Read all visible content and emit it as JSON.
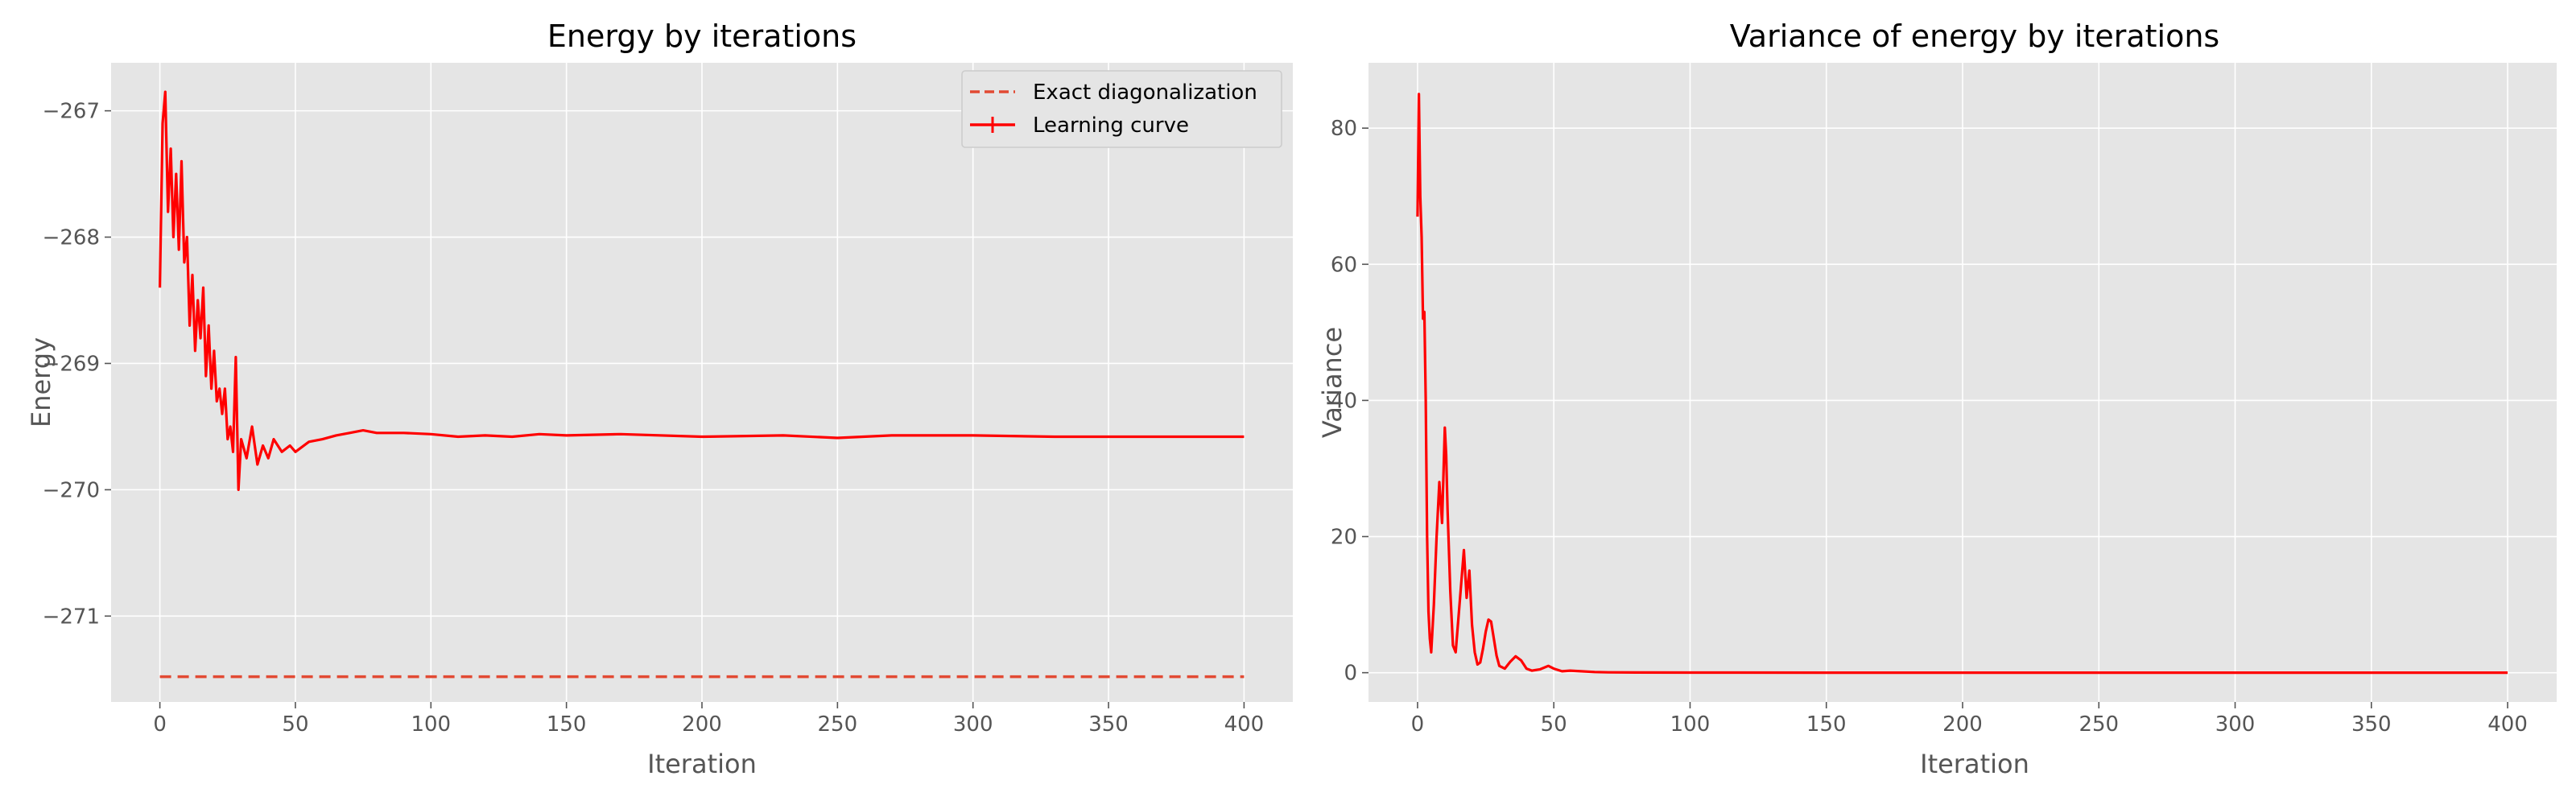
{
  "chart_data": [
    {
      "type": "line",
      "title": "Energy by iterations",
      "xlabel": "Iteration",
      "ylabel": "Energy",
      "xlim": [
        -18,
        418
      ],
      "ylim": [
        -271.68,
        -266.62
      ],
      "xticks": [
        0,
        50,
        100,
        150,
        200,
        250,
        300,
        350,
        400
      ],
      "yticks": [
        -267,
        -268,
        -269,
        -270,
        -271
      ],
      "xtick_labels": [
        "0",
        "50",
        "100",
        "150",
        "200",
        "250",
        "300",
        "350",
        "400"
      ],
      "ytick_labels": [
        "−267",
        "−268",
        "−269",
        "−270",
        "−271"
      ],
      "grid": true,
      "legend": {
        "position": "top-right",
        "entries": [
          "Exact diagonalization",
          "Learning curve"
        ]
      },
      "series": [
        {
          "name": "Exact diagonalization",
          "style": "dashed",
          "color": "#e24a33",
          "x": [
            0,
            400
          ],
          "y": [
            -271.48,
            -271.48
          ]
        },
        {
          "name": "Learning curve",
          "style": "solid",
          "color": "#ff0000",
          "x": [
            0,
            1,
            2,
            3,
            4,
            5,
            6,
            7,
            8,
            9,
            10,
            11,
            12,
            13,
            14,
            15,
            16,
            17,
            18,
            19,
            20,
            21,
            22,
            23,
            24,
            25,
            26,
            27,
            28,
            29,
            30,
            32,
            34,
            36,
            38,
            40,
            42,
            45,
            48,
            50,
            55,
            60,
            65,
            70,
            75,
            80,
            90,
            100,
            110,
            120,
            130,
            140,
            150,
            170,
            200,
            230,
            250,
            270,
            300,
            330,
            360,
            400
          ],
          "y": [
            -268.4,
            -267.1,
            -266.85,
            -267.8,
            -267.3,
            -268.0,
            -267.5,
            -268.1,
            -267.4,
            -268.2,
            -268.0,
            -268.7,
            -268.3,
            -268.9,
            -268.5,
            -268.8,
            -268.4,
            -269.1,
            -268.7,
            -269.2,
            -268.9,
            -269.3,
            -269.2,
            -269.4,
            -269.2,
            -269.6,
            -269.5,
            -269.7,
            -268.95,
            -270.0,
            -269.6,
            -269.75,
            -269.5,
            -269.8,
            -269.65,
            -269.75,
            -269.6,
            -269.7,
            -269.65,
            -269.7,
            -269.62,
            -269.6,
            -269.57,
            -269.55,
            -269.53,
            -269.55,
            -269.55,
            -269.56,
            -269.58,
            -269.57,
            -269.58,
            -269.56,
            -269.57,
            -269.56,
            -269.58,
            -269.57,
            -269.59,
            -269.57,
            -269.57,
            -269.58,
            -269.58,
            -269.58
          ]
        }
      ]
    },
    {
      "type": "line",
      "title": "Variance of energy by iterations",
      "xlabel": "Iteration",
      "ylabel": "Variance",
      "xlim": [
        -18,
        418
      ],
      "ylim": [
        -4.3,
        89.6
      ],
      "xticks": [
        0,
        50,
        100,
        150,
        200,
        250,
        300,
        350,
        400
      ],
      "yticks": [
        0,
        20,
        40,
        60,
        80
      ],
      "xtick_labels": [
        "0",
        "50",
        "100",
        "150",
        "200",
        "250",
        "300",
        "350",
        "400"
      ],
      "ytick_labels": [
        "0",
        "20",
        "40",
        "60",
        "80"
      ],
      "grid": true,
      "series": [
        {
          "style": "solid",
          "color": "#ff0000",
          "x": [
            0,
            0.5,
            1,
            1.5,
            2,
            2.5,
            3,
            3.5,
            4,
            4.5,
            5,
            6,
            7,
            8,
            9,
            10,
            10.5,
            11,
            12,
            13,
            14,
            15,
            16,
            17,
            18,
            19,
            20,
            21,
            22,
            23,
            24,
            25,
            26,
            27,
            28,
            29,
            30,
            32,
            34,
            36,
            38,
            40,
            42,
            45,
            48,
            50,
            53,
            56,
            60,
            65,
            70,
            80,
            100,
            150,
            200,
            250,
            300,
            350,
            400
          ],
          "y": [
            67,
            85,
            70,
            64,
            52,
            53,
            40,
            20,
            9,
            5,
            3,
            10,
            20,
            28,
            22,
            36,
            32,
            24,
            12,
            4,
            3,
            8,
            13,
            18,
            11,
            15,
            7,
            3,
            1.2,
            1.5,
            3.5,
            6,
            7.8,
            7.5,
            5,
            2.5,
            1.0,
            0.6,
            1.6,
            2.4,
            1.8,
            0.6,
            0.3,
            0.5,
            1.0,
            0.6,
            0.2,
            0.3,
            0.2,
            0.1,
            0.05,
            0.03,
            0.02,
            0.01,
            0.01,
            0.01,
            0.01,
            0.01,
            0.01
          ]
        }
      ]
    }
  ]
}
